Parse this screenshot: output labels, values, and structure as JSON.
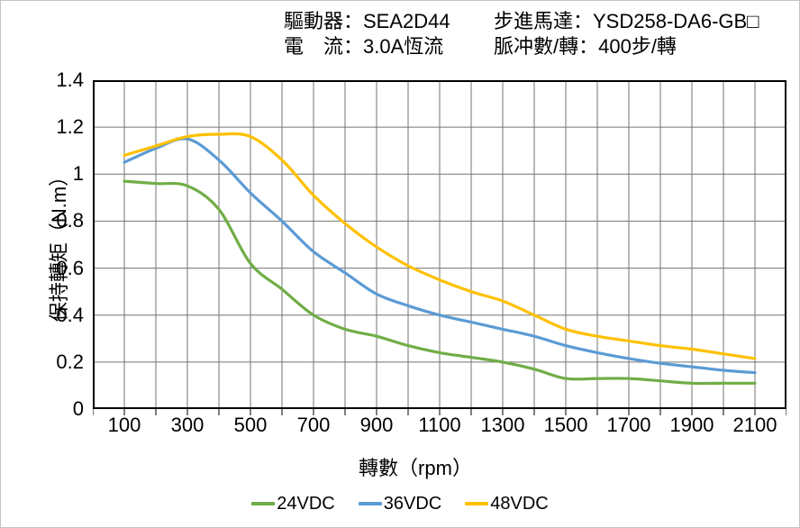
{
  "header": {
    "driver": "驅動器：SEA2D44",
    "current": "電　流：3.0A恆流",
    "motor": "步進馬達：YSD258-DA6-GB□",
    "pulse": "脈冲數/轉：400步/轉"
  },
  "chart_data": {
    "type": "line",
    "title": "",
    "xlabel": "轉數（rpm）",
    "ylabel": "保持轉矩（N.m）",
    "xlim": [
      0,
      2200
    ],
    "ylim": [
      0,
      1.4
    ],
    "grid": {
      "x_step": 100,
      "y_step": 0.2,
      "color": "#737373",
      "border_color": "#000000"
    },
    "x_tick_labels": [
      "100",
      "300",
      "500",
      "700",
      "900",
      "1100",
      "1300",
      "1500",
      "1700",
      "1900",
      "2100"
    ],
    "x_tick_values": [
      100,
      300,
      500,
      700,
      900,
      1100,
      1300,
      1500,
      1700,
      1900,
      2100
    ],
    "y_tick_labels": [
      "0",
      "0.2",
      "0.4",
      "0.6",
      "0.8",
      "1",
      "1.2",
      "1.4"
    ],
    "y_tick_values": [
      0,
      0.2,
      0.4,
      0.6,
      0.8,
      1.0,
      1.2,
      1.4
    ],
    "x": [
      100,
      200,
      300,
      400,
      500,
      600,
      700,
      800,
      900,
      1000,
      1100,
      1200,
      1300,
      1400,
      1500,
      1600,
      1700,
      1800,
      1900,
      2000,
      2100
    ],
    "series": [
      {
        "name": "24VDC",
        "color": "#70AD47",
        "values": [
          0.97,
          0.96,
          0.95,
          0.85,
          0.62,
          0.51,
          0.4,
          0.34,
          0.31,
          0.27,
          0.24,
          0.22,
          0.2,
          0.17,
          0.13,
          0.13,
          0.13,
          0.12,
          0.11,
          0.11,
          0.11
        ]
      },
      {
        "name": "36VDC",
        "color": "#5B9BD5",
        "values": [
          1.05,
          1.11,
          1.15,
          1.06,
          0.92,
          0.8,
          0.67,
          0.58,
          0.49,
          0.44,
          0.4,
          0.37,
          0.34,
          0.31,
          0.27,
          0.24,
          0.215,
          0.195,
          0.18,
          0.165,
          0.155
        ]
      },
      {
        "name": "48VDC",
        "color": "#FFC000",
        "values": [
          1.08,
          1.12,
          1.16,
          1.17,
          1.16,
          1.06,
          0.91,
          0.79,
          0.69,
          0.61,
          0.55,
          0.5,
          0.46,
          0.4,
          0.34,
          0.31,
          0.29,
          0.27,
          0.255,
          0.235,
          0.215
        ]
      }
    ],
    "legend_position": "bottom"
  }
}
